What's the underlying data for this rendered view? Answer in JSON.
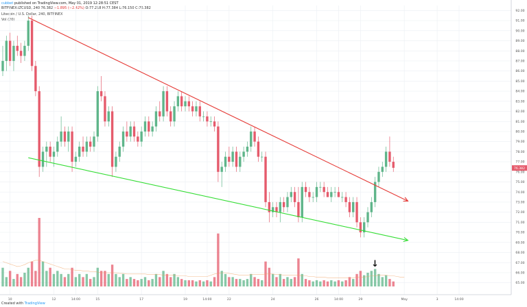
{
  "header": {
    "author": "cubbet",
    "published": "published on TradingView.com, May 01, 2019 12:28:51 CEST",
    "symbol": "BITFINEX:LTCUSD, 240",
    "quote": "76.382",
    "change": "−1.895 (−2.42%)",
    "ohlc": "O:77.218 H:77.384 L:76.150 C:76.382",
    "instrument": "Litecoin / U.S. Dollar, 240, BITFINEX",
    "volume_label": "Vol (20)"
  },
  "footer": {
    "created_with": "Created with",
    "brand": "TradingView"
  },
  "colors": {
    "up": "#5fb58a",
    "down": "#e55b6c",
    "resistance_line": "#e53935",
    "support_line": "#33dd33",
    "price_tag": "#e55b6c"
  },
  "chart_data": {
    "type": "candlestick",
    "price_axis": {
      "ylim": [
        64.5,
        92.5
      ],
      "ticks": [
        65,
        66,
        67,
        68,
        69,
        70,
        71,
        72,
        73,
        74,
        75,
        76,
        77,
        78,
        79,
        80,
        81,
        82,
        83,
        84,
        85,
        86,
        87,
        88,
        89,
        90,
        91,
        92
      ],
      "tick_labels": [
        "65.00",
        "66.00",
        "67.00",
        "68.00",
        "69.00",
        "70.00",
        "71.00",
        "72.00",
        "73.00",
        "74.00",
        "75.00",
        "76.00",
        "77.00",
        "78.00",
        "79.00",
        "80.00",
        "81.00",
        "82.00",
        "83.00",
        "84.00",
        "85.00",
        "86.00",
        "87.00",
        "88.00",
        "89.00",
        "90.00",
        "91.00",
        "92.00"
      ],
      "last_price": 76.382,
      "last_price_label": "76.382"
    },
    "time_axis": {
      "labels": [
        {
          "i": 2,
          "text": "10"
        },
        {
          "i": 14,
          "text": "12"
        },
        {
          "i": 20,
          "text": "14:00"
        },
        {
          "i": 26,
          "text": "15"
        },
        {
          "i": 38,
          "text": "17"
        },
        {
          "i": 50,
          "text": "19"
        },
        {
          "i": 56,
          "text": "14:00"
        },
        {
          "i": 62,
          "text": "22"
        },
        {
          "i": 74,
          "text": "24"
        },
        {
          "i": 86,
          "text": "26"
        },
        {
          "i": 92,
          "text": "14:00"
        },
        {
          "i": 98,
          "text": "29"
        },
        {
          "i": 110,
          "text": "May"
        },
        {
          "i": 119,
          "text": "3"
        },
        {
          "i": 125,
          "text": "14:00"
        }
      ]
    },
    "candles": [
      [
        86.0,
        88.5,
        85.5,
        87.0,
        30
      ],
      [
        87.0,
        89.5,
        86.0,
        89.0,
        15
      ],
      [
        89.0,
        89.8,
        86.5,
        87.0,
        25
      ],
      [
        87.0,
        89.0,
        86.0,
        88.5,
        12
      ],
      [
        88.5,
        89.5,
        87.5,
        88.0,
        20
      ],
      [
        88.0,
        88.8,
        86.8,
        87.5,
        15
      ],
      [
        87.5,
        89.0,
        87.0,
        88.5,
        22
      ],
      [
        88.5,
        91.5,
        88.0,
        91.0,
        30
      ],
      [
        91.0,
        91.5,
        86.0,
        86.5,
        40
      ],
      [
        86.5,
        87.0,
        83.5,
        84.0,
        25
      ],
      [
        84.0,
        84.5,
        75.5,
        76.5,
        110
      ],
      [
        76.5,
        78.5,
        76.0,
        78.0,
        40
      ],
      [
        78.0,
        79.0,
        76.5,
        78.5,
        25
      ],
      [
        78.5,
        79.0,
        77.0,
        77.5,
        30
      ],
      [
        77.5,
        78.5,
        76.5,
        78.0,
        20
      ],
      [
        78.0,
        79.5,
        77.5,
        79.0,
        25
      ],
      [
        79.0,
        81.5,
        78.5,
        80.0,
        20
      ],
      [
        80.0,
        80.5,
        78.5,
        79.0,
        15
      ],
      [
        79.0,
        80.5,
        78.0,
        80.0,
        20
      ],
      [
        80.0,
        80.5,
        76.0,
        77.0,
        30
      ],
      [
        77.0,
        78.0,
        76.5,
        77.5,
        15
      ],
      [
        77.5,
        79.0,
        77.0,
        78.5,
        20
      ],
      [
        78.5,
        79.5,
        77.5,
        78.0,
        15
      ],
      [
        78.0,
        79.5,
        77.5,
        79.0,
        20
      ],
      [
        79.0,
        79.5,
        78.0,
        78.5,
        12
      ],
      [
        78.5,
        80.0,
        78.0,
        79.5,
        15
      ],
      [
        79.5,
        84.5,
        79.0,
        84.0,
        30
      ],
      [
        84.0,
        85.5,
        83.0,
        83.5,
        25
      ],
      [
        83.5,
        84.0,
        80.5,
        81.0,
        25
      ],
      [
        81.0,
        82.5,
        80.5,
        82.0,
        20
      ],
      [
        82.0,
        82.5,
        75.5,
        76.5,
        35
      ],
      [
        76.5,
        78.0,
        76.0,
        77.5,
        20
      ],
      [
        77.5,
        79.0,
        77.0,
        78.5,
        15
      ],
      [
        78.5,
        80.5,
        78.0,
        80.0,
        20
      ],
      [
        80.0,
        81.0,
        79.0,
        79.5,
        12
      ],
      [
        79.5,
        81.0,
        79.0,
        80.5,
        15
      ],
      [
        80.5,
        81.0,
        79.0,
        79.5,
        12
      ],
      [
        79.5,
        80.0,
        78.5,
        79.0,
        10
      ],
      [
        79.0,
        80.5,
        78.5,
        80.0,
        12
      ],
      [
        80.0,
        81.5,
        79.5,
        81.0,
        15
      ],
      [
        81.0,
        81.5,
        79.5,
        80.0,
        10
      ],
      [
        80.0,
        81.0,
        79.5,
        80.5,
        12
      ],
      [
        80.5,
        82.5,
        80.0,
        82.0,
        20
      ],
      [
        82.0,
        83.0,
        81.0,
        81.5,
        15
      ],
      [
        81.5,
        84.5,
        81.0,
        84.0,
        25
      ],
      [
        84.0,
        84.5,
        81.5,
        82.0,
        20
      ],
      [
        82.0,
        82.5,
        80.5,
        81.0,
        15
      ],
      [
        81.0,
        83.0,
        80.5,
        82.5,
        20
      ],
      [
        82.5,
        84.0,
        82.0,
        83.5,
        15
      ],
      [
        83.5,
        84.0,
        82.0,
        82.5,
        12
      ],
      [
        82.5,
        83.5,
        82.0,
        83.0,
        10
      ],
      [
        83.0,
        83.5,
        82.0,
        82.5,
        10
      ],
      [
        82.5,
        83.0,
        81.5,
        82.0,
        10
      ],
      [
        82.0,
        83.0,
        81.5,
        82.5,
        8
      ],
      [
        82.5,
        83.0,
        81.0,
        81.5,
        10
      ],
      [
        81.5,
        82.0,
        81.0,
        81.5,
        8
      ],
      [
        81.5,
        82.0,
        80.5,
        81.0,
        10
      ],
      [
        81.0,
        81.5,
        80.5,
        81.0,
        8
      ],
      [
        81.0,
        81.5,
        80.0,
        80.5,
        15
      ],
      [
        80.5,
        81.0,
        75.0,
        76.0,
        85
      ],
      [
        76.0,
        77.0,
        74.5,
        76.5,
        25
      ],
      [
        76.5,
        78.0,
        76.0,
        77.5,
        20
      ],
      [
        77.5,
        78.5,
        76.5,
        77.0,
        15
      ],
      [
        77.0,
        78.5,
        76.5,
        78.0,
        15
      ],
      [
        78.0,
        78.5,
        76.0,
        76.5,
        12
      ],
      [
        76.5,
        78.0,
        76.0,
        77.5,
        12
      ],
      [
        77.5,
        78.5,
        77.0,
        78.0,
        10
      ],
      [
        78.0,
        79.0,
        77.5,
        78.5,
        12
      ],
      [
        78.5,
        80.5,
        78.0,
        80.0,
        20
      ],
      [
        80.0,
        80.5,
        78.5,
        79.0,
        15
      ],
      [
        79.0,
        79.5,
        77.0,
        77.5,
        12
      ],
      [
        77.5,
        78.0,
        77.0,
        77.5,
        10
      ],
      [
        77.5,
        78.0,
        72.5,
        73.0,
        40
      ],
      [
        73.0,
        74.0,
        71.0,
        72.0,
        30
      ],
      [
        72.0,
        73.0,
        71.5,
        72.5,
        20
      ],
      [
        72.5,
        73.0,
        71.5,
        72.0,
        15
      ],
      [
        72.0,
        73.5,
        71.0,
        73.0,
        20
      ],
      [
        73.0,
        73.5,
        72.0,
        72.5,
        12
      ],
      [
        72.5,
        74.0,
        72.0,
        73.5,
        15
      ],
      [
        73.5,
        74.5,
        73.0,
        74.0,
        12
      ],
      [
        74.0,
        74.5,
        72.5,
        73.0,
        15
      ],
      [
        73.0,
        74.5,
        71.0,
        71.5,
        45
      ],
      [
        71.5,
        75.0,
        71.0,
        74.5,
        20
      ],
      [
        74.5,
        75.0,
        73.5,
        74.0,
        12
      ],
      [
        74.0,
        74.5,
        73.0,
        73.5,
        10
      ],
      [
        73.5,
        74.0,
        73.0,
        73.5,
        8
      ],
      [
        73.5,
        75.0,
        73.0,
        74.5,
        10
      ],
      [
        74.5,
        75.0,
        74.0,
        74.5,
        8
      ],
      [
        74.5,
        75.0,
        73.5,
        74.0,
        10
      ],
      [
        74.0,
        74.5,
        73.5,
        73.5,
        8
      ],
      [
        73.5,
        74.5,
        73.0,
        74.0,
        10
      ],
      [
        74.0,
        74.5,
        73.5,
        74.0,
        8
      ],
      [
        74.0,
        74.5,
        73.5,
        73.5,
        10
      ],
      [
        73.5,
        74.0,
        73.0,
        73.5,
        8
      ],
      [
        73.5,
        74.0,
        72.5,
        73.0,
        10
      ],
      [
        73.0,
        73.5,
        71.5,
        72.0,
        15
      ],
      [
        72.0,
        73.5,
        71.5,
        73.0,
        12
      ],
      [
        73.0,
        73.5,
        70.5,
        71.0,
        20
      ],
      [
        71.0,
        71.5,
        69.5,
        70.0,
        25
      ],
      [
        70.0,
        71.5,
        69.5,
        71.0,
        18
      ],
      [
        71.0,
        72.5,
        70.5,
        72.0,
        22
      ],
      [
        72.0,
        73.5,
        71.5,
        73.0,
        25
      ],
      [
        73.0,
        75.5,
        72.5,
        75.0,
        28
      ],
      [
        75.0,
        76.5,
        74.5,
        76.0,
        20
      ],
      [
        76.0,
        77.0,
        75.5,
        76.5,
        15
      ],
      [
        76.5,
        78.5,
        76.0,
        78.0,
        18
      ],
      [
        78.0,
        79.5,
        76.5,
        77.0,
        12
      ],
      [
        77.0,
        77.5,
        76.0,
        76.4,
        8
      ]
    ],
    "volume_scale_max": 110,
    "volume_ma": [
      40,
      38,
      36,
      34,
      32,
      33,
      35,
      38,
      40,
      42,
      42,
      40,
      38,
      36,
      34,
      32,
      30,
      28,
      28,
      27,
      26,
      26,
      25,
      25,
      24,
      24,
      23,
      22,
      22,
      22,
      22,
      22,
      21,
      21,
      20,
      20,
      20,
      20,
      20,
      20,
      19,
      19,
      19,
      19,
      18,
      18,
      18,
      18,
      17,
      17,
      17,
      16,
      16,
      16,
      16,
      16,
      16,
      18,
      20,
      21,
      22,
      22,
      21,
      20,
      19,
      18,
      18,
      18,
      19,
      19,
      19,
      19,
      20,
      20,
      20,
      19,
      19,
      18,
      18,
      18,
      18,
      18,
      17,
      17,
      16,
      16,
      15,
      15,
      15,
      14,
      14,
      14,
      14,
      14,
      14,
      14,
      14,
      15,
      15,
      15,
      16,
      17,
      17,
      18,
      18,
      18,
      17,
      17,
      16,
      15,
      15
    ],
    "trendlines": [
      {
        "name": "resistance",
        "from": {
          "i": 7,
          "price": 91.3
        },
        "to": {
          "i": 111,
          "price": 73.1
        },
        "arrow": true
      },
      {
        "name": "support",
        "from": {
          "i": 7,
          "price": 77.4
        },
        "to": {
          "i": 111,
          "price": 69.2
        },
        "arrow": true
      }
    ],
    "markers": [
      {
        "i": 102,
        "symbol": "↓"
      }
    ]
  }
}
